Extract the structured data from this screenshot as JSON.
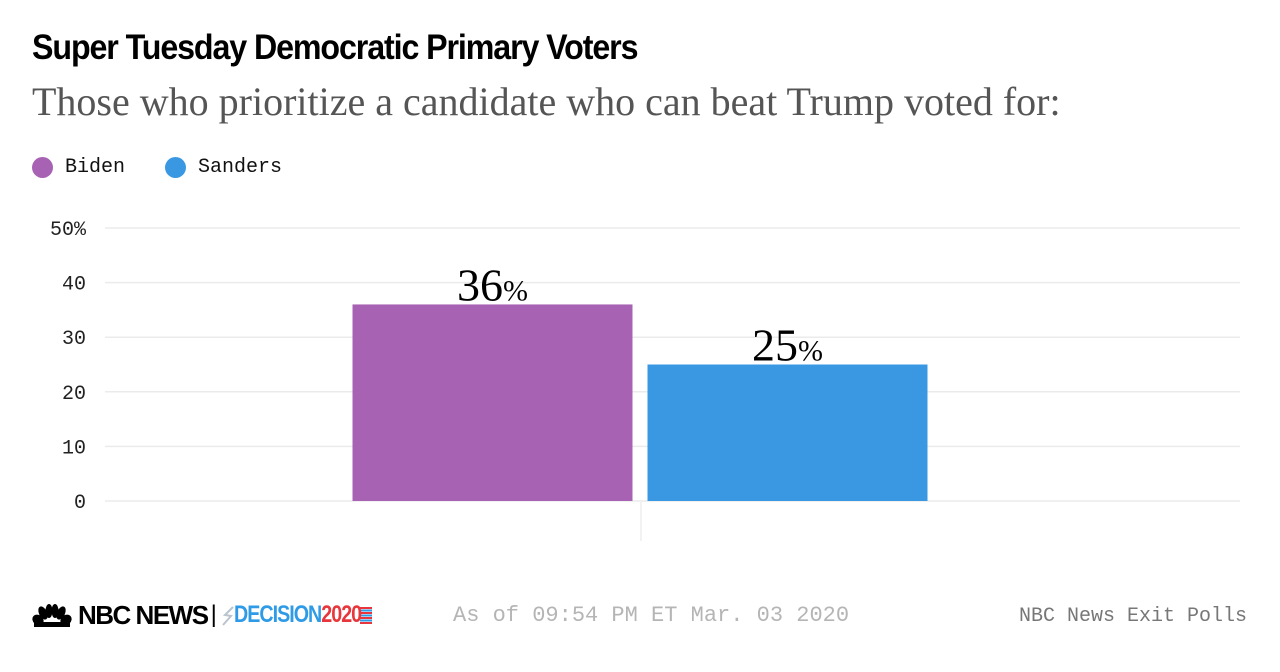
{
  "header": {
    "title": "Super Tuesday Democratic Primary Voters",
    "subtitle": "Those who prioritize a candidate who can beat Trump voted for:"
  },
  "legend": [
    {
      "label": "Biden",
      "color": "#a862b4"
    },
    {
      "label": "Sanders",
      "color": "#3a98e3"
    }
  ],
  "chart_data": {
    "type": "bar",
    "title": "Super Tuesday Democratic Primary Voters",
    "subtitle": "Those who prioritize a candidate who can beat Trump voted for:",
    "categories": [
      "Biden",
      "Sanders"
    ],
    "values": [
      36,
      25
    ],
    "data_labels": [
      {
        "number": "36",
        "unit": "%"
      },
      {
        "number": "25",
        "unit": "%"
      }
    ],
    "colors": [
      "#a862b4",
      "#3a98e3"
    ],
    "xlabel": "",
    "ylabel": "",
    "ylim": [
      0,
      50
    ],
    "yticks": [
      0,
      10,
      20,
      30,
      40,
      50
    ],
    "ytick_labels": [
      "0",
      "10",
      "20",
      "30",
      "40",
      "50%"
    ],
    "grid": true,
    "legend_position": "top-left"
  },
  "footer": {
    "logo_nbc": "NBC NEWS",
    "logo_sep": "|",
    "logo_decision": "DECISION",
    "logo_year": "2020",
    "timestamp": "As of 09:54 PM ET Mar. 03 2020",
    "source": "NBC News Exit Polls"
  }
}
